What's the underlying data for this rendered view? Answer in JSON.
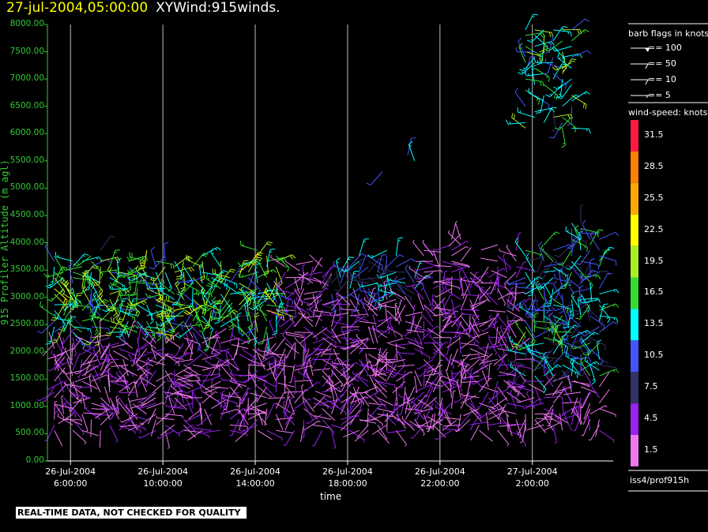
{
  "title": {
    "date": "27-jul-2004,05:00:00",
    "name": "XYWind:915winds."
  },
  "chart_data": {
    "type": "wind-barb-time-height",
    "xlabel": "time",
    "ylabel": "915 Profiler Altitude (m agl)",
    "ylim": [
      0,
      8000
    ],
    "y_ticks": [
      "0.00",
      "500.00",
      "1000.00",
      "1500.00",
      "2000.00",
      "2500.00",
      "3000.00",
      "3500.00",
      "4000.00",
      "4500.00",
      "5000.00",
      "5500.00",
      "6000.00",
      "6500.00",
      "7000.00",
      "7500.00",
      "8000.00"
    ],
    "x_ticks": [
      {
        "line1": "26-Jul-2004",
        "line2": "6:00:00"
      },
      {
        "line1": "26-Jul-2004",
        "line2": "10:00:00"
      },
      {
        "line1": "26-Jul-2004",
        "line2": "14:00:00"
      },
      {
        "line1": "26-Jul-2004",
        "line2": "18:00:00"
      },
      {
        "line1": "26-Jul-2004",
        "line2": "22:00:00"
      },
      {
        "line1": "27-Jul-2004",
        "line2": "2:00:00"
      }
    ],
    "x_range_hours": [
      5,
      29.5
    ],
    "x_tick_hours": [
      6,
      10,
      14,
      18,
      22,
      26
    ],
    "grid": "vertical lines at ticks",
    "barb_interval_hours": 0.4,
    "height_interval_m": 100,
    "notes_on_coverage": "dense barbs 500-3500 m across period; high-level barbs 6000-8000 m after ~00:30 27-Jul"
  },
  "legend": {
    "barb_header": "barb flags in knots",
    "barbs": [
      "== 100",
      "== 50",
      "== 10",
      "== 5"
    ],
    "speed_header": "wind-speed: knots",
    "speed_levels": [
      "31.5",
      "28.5",
      "25.5",
      "22.5",
      "19.5",
      "16.5",
      "13.5",
      "10.5",
      "7.5",
      "4.5",
      "1.5"
    ],
    "colors": [
      "#ff1a44",
      "#ff7f00",
      "#ffaa00",
      "#ffff00",
      "#aaee22",
      "#33dd33",
      "#00ffff",
      "#4455ff",
      "#333366",
      "#9922ee",
      "#ee77ee"
    ]
  },
  "source": "iss4/prof915h",
  "notice": "REAL-TIME DATA, NOT CHECKED FOR QUALITY"
}
